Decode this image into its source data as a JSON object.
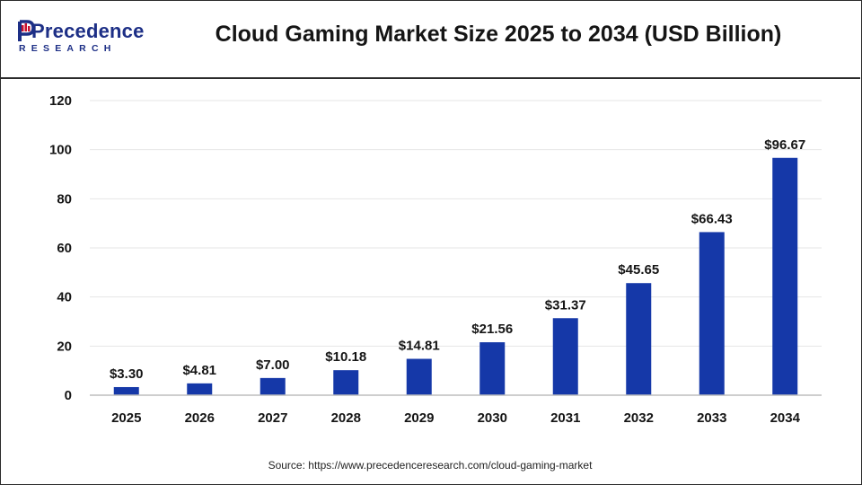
{
  "header": {
    "logo_text": "Precedence",
    "logo_subtext": "RESEARCH",
    "title": "Cloud Gaming Market Size 2025 to 2034 (USD Billion)"
  },
  "colors": {
    "bar": "#1538a8",
    "brand": "#1d2f86",
    "grid": "#e6e6e6",
    "axis": "#bdbdbd",
    "text": "#151515"
  },
  "chart_data": {
    "type": "bar",
    "categories": [
      "2025",
      "2026",
      "2027",
      "2028",
      "2029",
      "2030",
      "2031",
      "2032",
      "2033",
      "2034"
    ],
    "values": [
      3.3,
      4.81,
      7.0,
      10.18,
      14.81,
      21.56,
      31.37,
      45.65,
      66.43,
      96.67
    ],
    "data_labels": [
      "$3.30",
      "$4.81",
      "$7.00",
      "$10.18",
      "$14.81",
      "$21.56",
      "$31.37",
      "$45.65",
      "$66.43",
      "$96.67"
    ],
    "yticks": [
      0,
      20,
      40,
      60,
      80,
      100,
      120
    ],
    "ylim": [
      0,
      120
    ],
    "title": "Cloud Gaming Market Size 2025 to 2034 (USD Billion)",
    "xlabel": "",
    "ylabel": "",
    "grid": true,
    "legend": "none"
  },
  "footer": {
    "source": "Source: https://www.precedenceresearch.com/cloud-gaming-market"
  }
}
